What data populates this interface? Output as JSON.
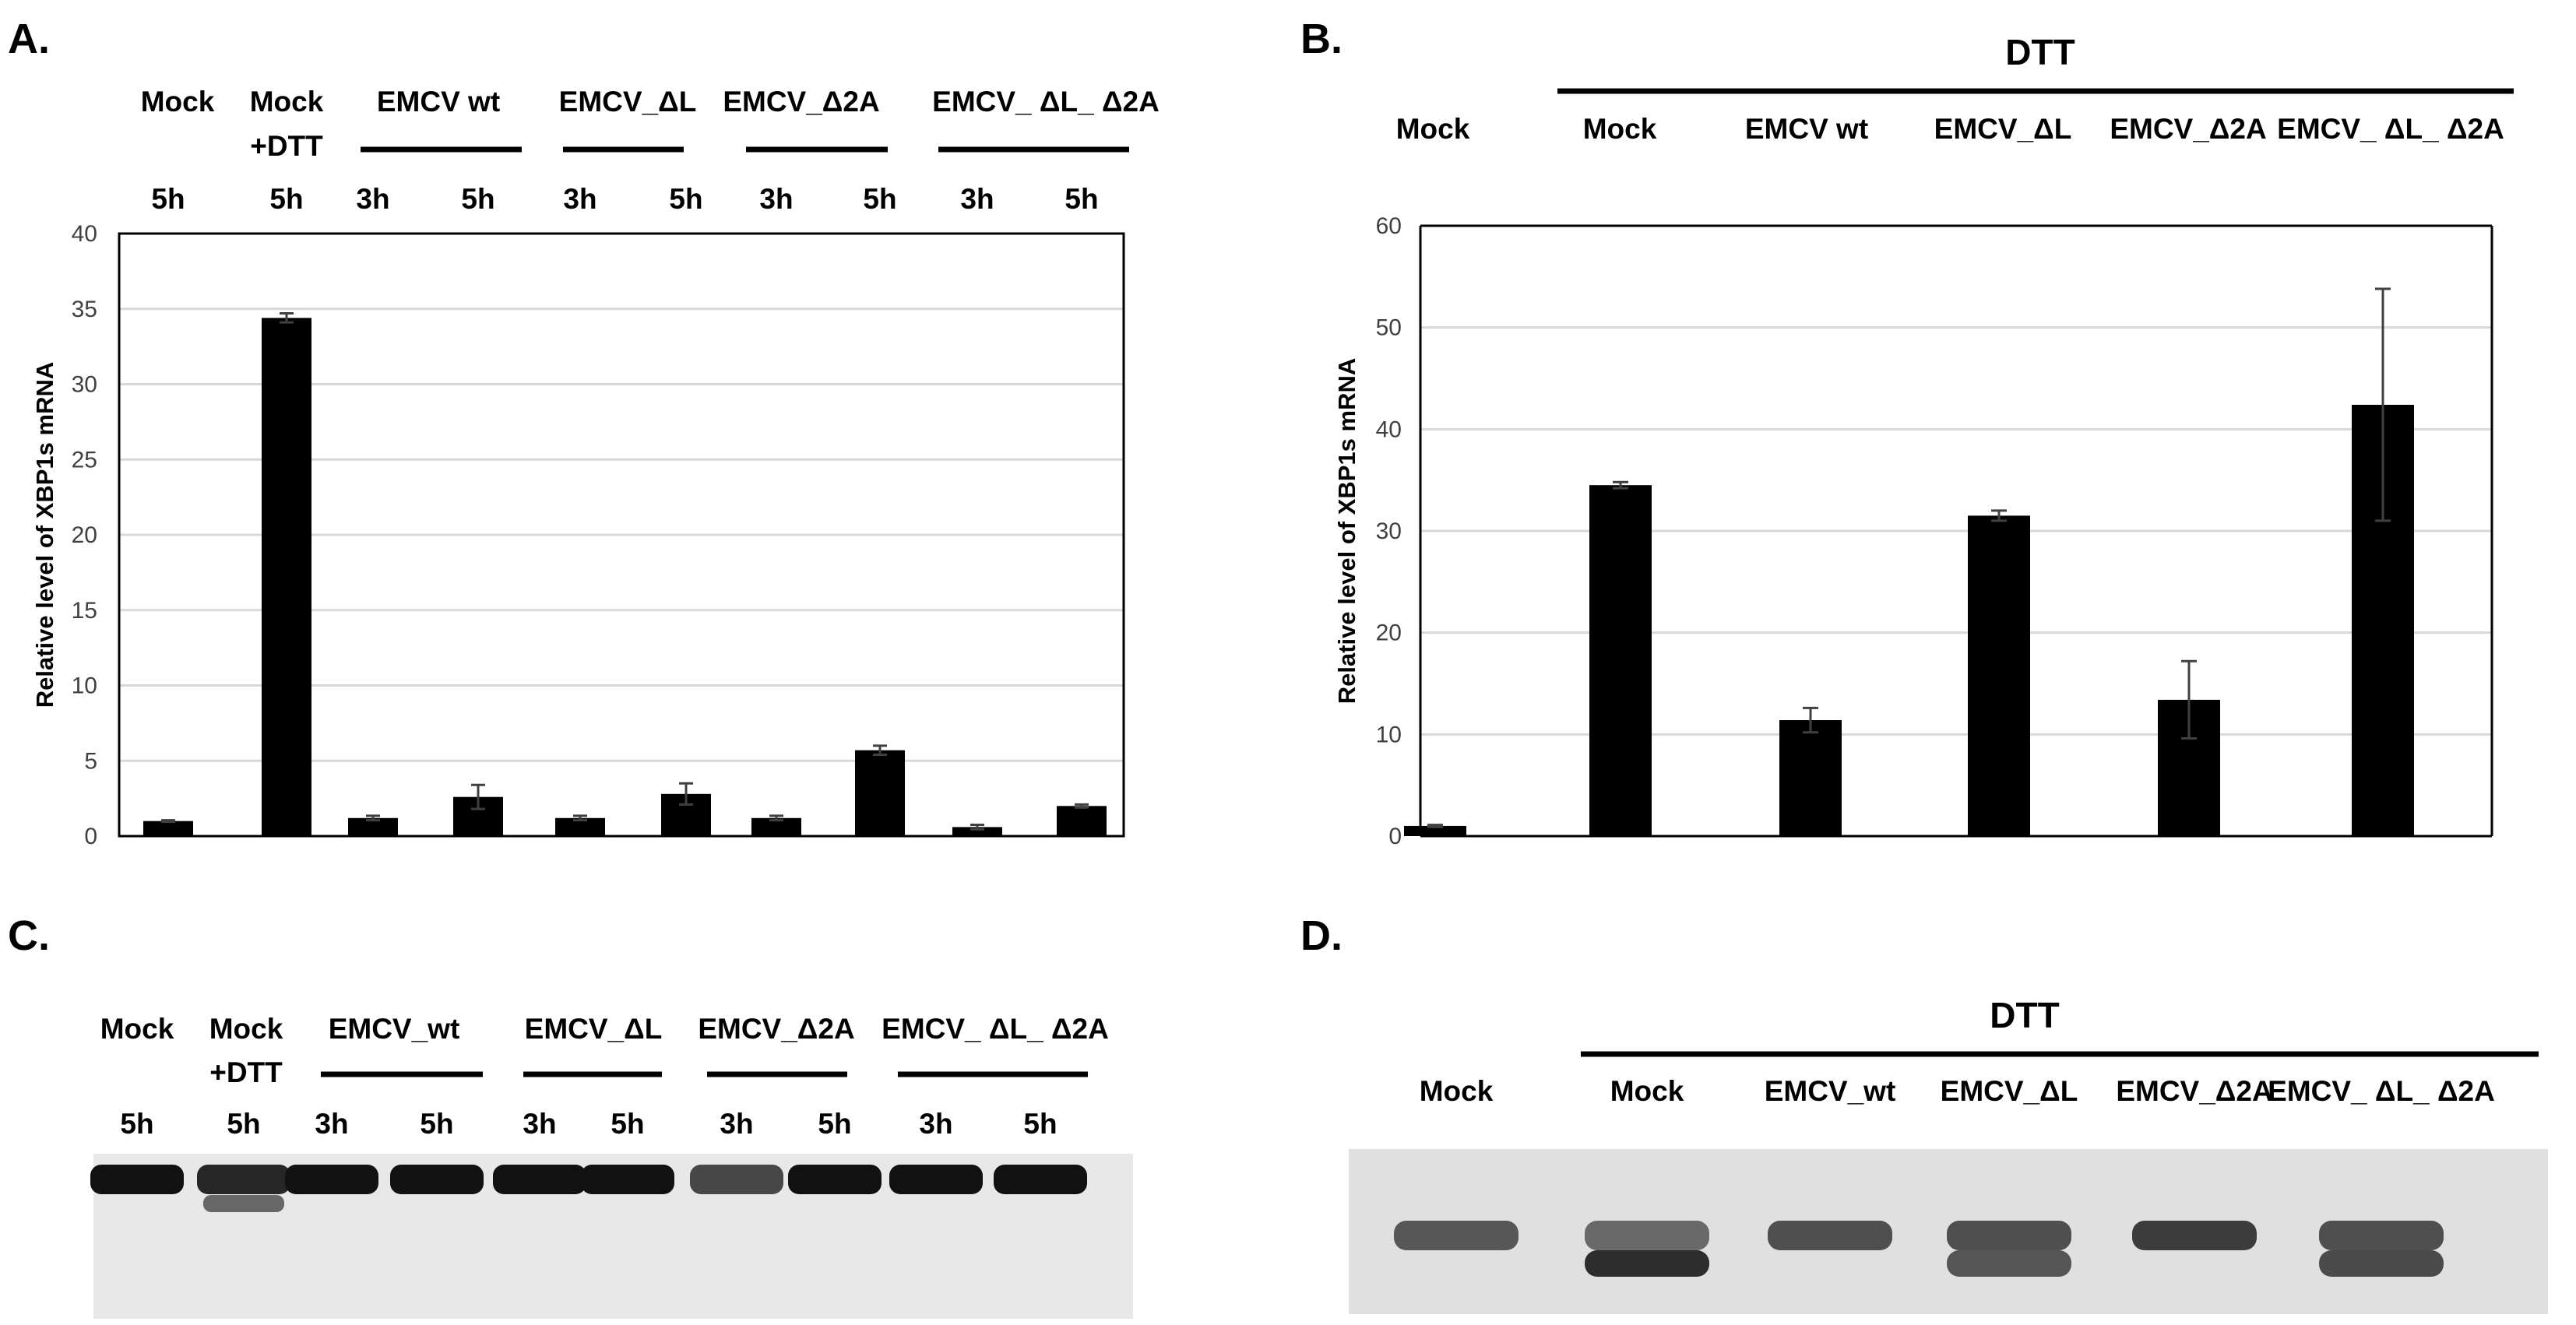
{
  "figure": {
    "panel_a": {
      "letter": "A."
    },
    "panel_b": {
      "letter": "B."
    },
    "panel_c": {
      "letter": "C."
    },
    "panel_d": {
      "letter": "D."
    }
  },
  "colors": {
    "bar": "#000000",
    "grid": "#d9d9d9",
    "axis": "#000000",
    "gel_bg": "#e8e8e8",
    "band": "#111111"
  },
  "chart_data": [
    {
      "id": "A",
      "type": "bar",
      "ylabel": "Relative level of XBP1s mRNA",
      "ylim": [
        0,
        40
      ],
      "yticks": [
        0,
        5,
        10,
        15,
        20,
        25,
        30,
        35,
        40
      ],
      "grid": true,
      "groups": [
        {
          "label": "Mock",
          "label2": "",
          "bar": false,
          "times": [
            "5h"
          ]
        },
        {
          "label": "Mock",
          "label2": "+DTT",
          "bar": false,
          "times": [
            "5h"
          ]
        },
        {
          "label": "EMCV wt",
          "label2": "",
          "bar": true,
          "times": [
            "3h",
            "5h"
          ]
        },
        {
          "label": "EMCV_ΔL",
          "label2": "",
          "bar": true,
          "times": [
            "3h",
            "5h"
          ]
        },
        {
          "label": "EMCV_Δ2A",
          "label2": "",
          "bar": true,
          "times": [
            "3h",
            "5h"
          ]
        },
        {
          "label": "EMCV_ ΔL_ Δ2A",
          "label2": "",
          "bar": true,
          "times": [
            "3h",
            "5h"
          ]
        }
      ],
      "values": [
        1.0,
        34.4,
        1.2,
        2.6,
        1.2,
        2.8,
        1.2,
        5.7,
        0.6,
        2.0
      ],
      "errors": [
        0.05,
        0.3,
        0.15,
        0.8,
        0.15,
        0.7,
        0.15,
        0.3,
        0.15,
        0.1
      ]
    },
    {
      "id": "B",
      "type": "bar",
      "header": "DTT",
      "ylabel": "Relative level of XBP1s mRNA",
      "ylim": [
        0,
        60
      ],
      "yticks": [
        0,
        10,
        20,
        30,
        40,
        50,
        60
      ],
      "grid": true,
      "categories": [
        "Mock",
        "Mock",
        "EMCV wt",
        "EMCV_ΔL",
        "EMCV_Δ2A",
        "EMCV_ ΔL_ Δ2A"
      ],
      "values": [
        1.0,
        34.5,
        11.4,
        31.5,
        13.4,
        42.4
      ],
      "errors": [
        0.1,
        0.3,
        1.2,
        0.5,
        3.8,
        11.4
      ]
    }
  ],
  "gel_c": {
    "groups": [
      {
        "label": "Mock",
        "label2": "",
        "bar": false,
        "times": [
          "5h"
        ]
      },
      {
        "label": "Mock",
        "label2": "+DTT",
        "bar": false,
        "times": [
          "5h"
        ]
      },
      {
        "label": "EMCV_wt",
        "label2": "",
        "bar": true,
        "times": [
          "3h",
          "5h"
        ]
      },
      {
        "label": "EMCV_ΔL",
        "label2": "",
        "bar": true,
        "times": [
          "3h",
          "5h"
        ]
      },
      {
        "label": "EMCV_Δ2A",
        "label2": "",
        "bar": true,
        "times": [
          "3h",
          "5h"
        ]
      },
      {
        "label": "EMCV_ ΔL_ Δ2A",
        "label2": "",
        "bar": true,
        "times": [
          "3h",
          "5h"
        ]
      }
    ],
    "band_intensity": [
      1.0,
      0.9,
      1.0,
      1.0,
      1.0,
      1.0,
      0.75,
      1.0,
      1.0,
      1.0
    ],
    "lower_band": [
      0,
      0.6,
      0,
      0,
      0,
      0,
      0,
      0,
      0,
      0
    ]
  },
  "gel_d": {
    "header": "DTT",
    "categories": [
      "Mock",
      "Mock",
      "EMCV_wt",
      "EMCV_ΔL",
      "EMCV_Δ2A",
      "EMCV_ ΔL_ Δ2A"
    ],
    "upper_band": [
      0.75,
      0.65,
      0.8,
      0.8,
      0.9,
      0.8
    ],
    "lower_band": [
      0,
      0.9,
      0,
      0.7,
      0,
      0.75
    ]
  }
}
